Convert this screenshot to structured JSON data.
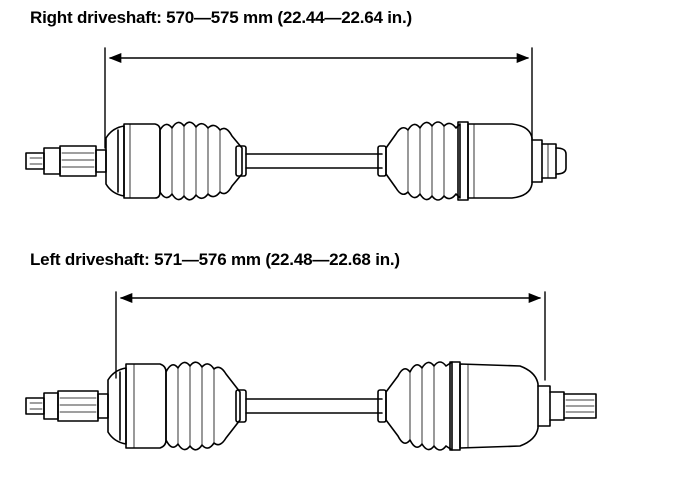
{
  "right_driveshaft": {
    "label": "Right driveshaft: 570—575 mm (22.44—22.64 in.)",
    "min_mm": 570,
    "max_mm": 575,
    "min_in": 22.44,
    "max_in": 22.64
  },
  "left_driveshaft": {
    "label": "Left driveshaft: 571—576 mm (22.48—22.68 in.)",
    "min_mm": 571,
    "max_mm": 576,
    "min_in": 22.48,
    "max_in": 22.68
  },
  "colors": {
    "line": "#000000",
    "background": "#ffffff"
  }
}
